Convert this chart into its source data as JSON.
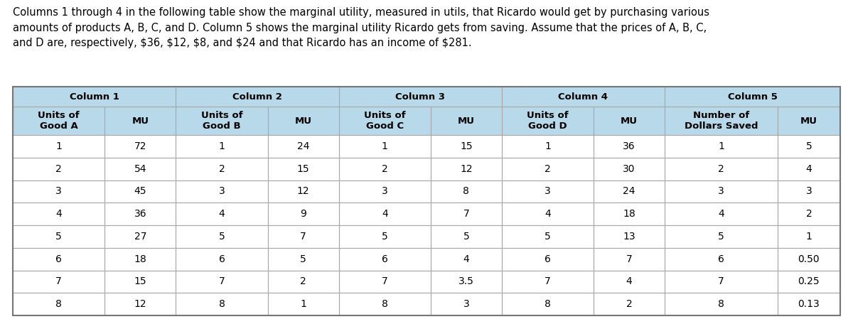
{
  "title_text": "Columns 1 through 4 in the following table show the marginal utility, measured in utils, that Ricardo would get by purchasing various\namounts of products A, B, C, and D. Column 5 shows the marginal utility Ricardo gets from saving. Assume that the prices of A, B, C,\nand D are, respectively, $36, $12, $8, and $24 and that Ricardo has an income of $281.",
  "col_group_labels": [
    "Column 1",
    "Column 2",
    "Column 3",
    "Column 4",
    "Column 5"
  ],
  "col_headers": [
    "Units of\nGood A",
    "MU",
    "Units of\nGood B",
    "MU",
    "Units of\nGood C",
    "MU",
    "Units of\nGood D",
    "MU",
    "Number of\nDollars Saved",
    "MU"
  ],
  "rows": [
    [
      "1",
      "72",
      "1",
      "24",
      "1",
      "15",
      "1",
      "36",
      "1",
      "5"
    ],
    [
      "2",
      "54",
      "2",
      "15",
      "2",
      "12",
      "2",
      "30",
      "2",
      "4"
    ],
    [
      "3",
      "45",
      "3",
      "12",
      "3",
      "8",
      "3",
      "24",
      "3",
      "3"
    ],
    [
      "4",
      "36",
      "4",
      "9",
      "4",
      "7",
      "4",
      "18",
      "4",
      "2"
    ],
    [
      "5",
      "27",
      "5",
      "7",
      "5",
      "5",
      "5",
      "13",
      "5",
      "1"
    ],
    [
      "6",
      "18",
      "6",
      "5",
      "6",
      "4",
      "6",
      "7",
      "6",
      "0.50"
    ],
    [
      "7",
      "15",
      "7",
      "2",
      "7",
      "3.5",
      "7",
      "4",
      "7",
      "0.25"
    ],
    [
      "8",
      "12",
      "8",
      "1",
      "8",
      "3",
      "8",
      "2",
      "8",
      "0.13"
    ]
  ],
  "header_bg": "#b8d9ea",
  "border_color": "#aaaaaa",
  "text_color": "#000000",
  "title_fontsize": 10.5,
  "header_fontsize": 9.5,
  "cell_fontsize": 10,
  "col_widths_norm": [
    1.1,
    0.85,
    1.1,
    0.85,
    1.1,
    0.85,
    1.1,
    0.85,
    1.35,
    0.75
  ],
  "group_start_cols": [
    0,
    2,
    4,
    6,
    8
  ]
}
